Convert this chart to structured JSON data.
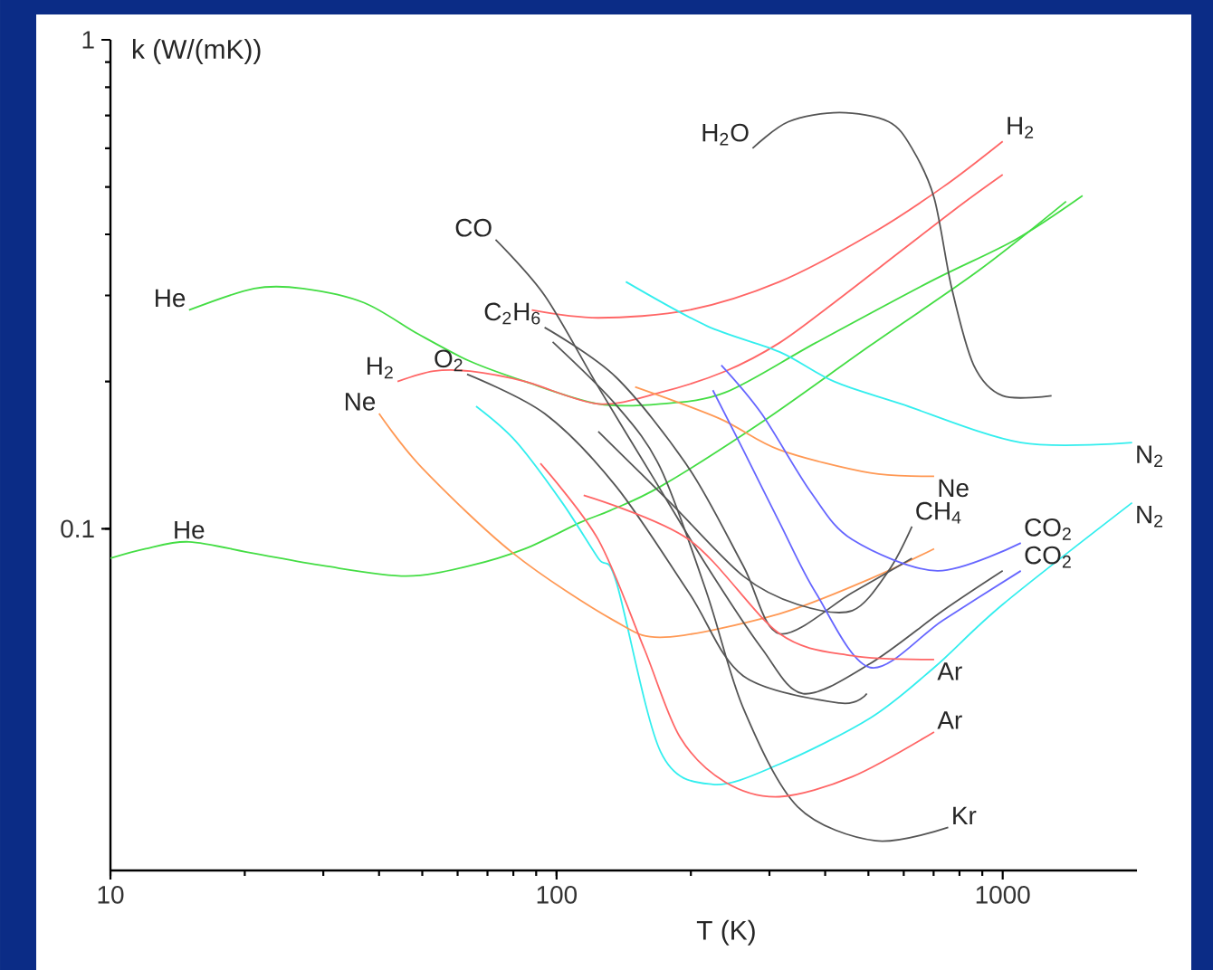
{
  "chart_data": {
    "type": "line",
    "xlabel": "T (K)",
    "ylabel": "k (W/(mK))",
    "log": "xy",
    "xlim": [
      10,
      2000
    ],
    "ylim": [
      0.02,
      1
    ],
    "xticks": [
      10,
      100,
      1000
    ],
    "yticks": [
      0.1,
      1
    ],
    "series": [
      {
        "color": "#44dd44",
        "x": [
          15,
          21,
          27,
          37,
          49,
          64,
          85,
          124,
          171,
          239,
          381,
          687,
          1067,
          1510
        ],
        "values": [
          0.28,
          0.31,
          0.31,
          0.29,
          0.25,
          0.22,
          0.2,
          0.18,
          0.18,
          0.19,
          0.24,
          0.32,
          0.39,
          0.48
        ]
      },
      {
        "color": "#44dd44",
        "x": [
          10,
          12,
          15,
          21,
          30,
          46,
          64,
          85,
          113,
          132,
          171,
          288,
          505,
          886,
          1387
        ],
        "values": [
          0.087,
          0.091,
          0.094,
          0.089,
          0.084,
          0.08,
          0.084,
          0.091,
          0.103,
          0.109,
          0.122,
          0.165,
          0.237,
          0.338,
          0.467
        ]
      },
      {
        "color": "#ff6666",
        "x": [
          88,
          124,
          198,
          316,
          505,
          735,
          1000
        ],
        "values": [
          0.28,
          0.27,
          0.28,
          0.32,
          0.4,
          0.5,
          0.62
        ]
      },
      {
        "color": "#ff6666",
        "x": [
          44,
          53,
          64,
          85,
          124,
          171,
          239,
          316,
          419,
          592,
          807,
          1000
        ],
        "values": [
          0.2,
          0.21,
          0.21,
          0.2,
          0.18,
          0.19,
          0.21,
          0.24,
          0.29,
          0.37,
          0.46,
          0.53
        ]
      },
      {
        "color": "#555555",
        "x": [
          275,
          331,
          431,
          555,
          626,
          702,
          769,
          861,
          1000,
          1287
        ],
        "values": [
          0.6,
          0.68,
          0.71,
          0.68,
          0.6,
          0.475,
          0.31,
          0.216,
          0.187,
          0.187
        ]
      },
      {
        "color": "#33eeee",
        "x": [
          143,
          217,
          316,
          419,
          592,
          1099,
          1950
        ],
        "values": [
          0.32,
          0.26,
          0.23,
          0.2,
          0.18,
          0.15,
          0.15
        ]
      },
      {
        "color": "#33eeee",
        "x": [
          66,
          81,
          103,
          124,
          136,
          171,
          224,
          316,
          505,
          702,
          1000,
          1950
        ],
        "values": [
          0.178,
          0.151,
          0.113,
          0.087,
          0.078,
          0.035,
          0.03,
          0.033,
          0.041,
          0.052,
          0.07,
          0.113
        ]
      },
      {
        "color": "#ff9955",
        "x": [
          150,
          232,
          316,
          505,
          702
        ],
        "values": [
          0.195,
          0.168,
          0.145,
          0.13,
          0.128
        ]
      },
      {
        "color": "#ff9955",
        "x": [
          40,
          50,
          80,
          134,
          175,
          316,
          505,
          702
        ],
        "values": [
          0.172,
          0.133,
          0.089,
          0.065,
          0.06,
          0.067,
          0.079,
          0.091
        ]
      },
      {
        "color": "#555555",
        "x": [
          73,
          94,
          124,
          164,
          217,
          288,
          357,
          505,
          735,
          1000
        ],
        "values": [
          0.39,
          0.3,
          0.195,
          0.128,
          0.084,
          0.057,
          0.046,
          0.053,
          0.068,
          0.082
        ]
      },
      {
        "color": "#555555",
        "x": [
          94,
          136,
          198,
          262,
          316,
          460,
          626
        ],
        "values": [
          0.258,
          0.204,
          0.133,
          0.084,
          0.061,
          0.074,
          0.087
        ]
      },
      {
        "color": "#555555",
        "x": [
          63,
          94,
          136,
          198,
          262,
          431,
          496
        ],
        "values": [
          0.207,
          0.172,
          0.122,
          0.074,
          0.05,
          0.044,
          0.046
        ]
      },
      {
        "color": "#555555",
        "x": [
          124,
          180,
          262,
          347,
          460,
          555,
          626
        ],
        "values": [
          0.158,
          0.113,
          0.08,
          0.07,
          0.068,
          0.082,
          0.101
        ]
      },
      {
        "color": "#555555",
        "x": [
          98,
          136,
          171,
          217,
          262,
          347,
          519,
          755
        ],
        "values": [
          0.241,
          0.179,
          0.133,
          0.074,
          0.043,
          0.027,
          0.023,
          0.0245
        ]
      },
      {
        "color": "#6666ff",
        "x": [
          234,
          288,
          371,
          460,
          714,
          1098
        ],
        "values": [
          0.216,
          0.172,
          0.119,
          0.095,
          0.082,
          0.0935
        ]
      },
      {
        "color": "#6666ff",
        "x": [
          224,
          262,
          316,
          381,
          505,
          735,
          1098
        ],
        "values": [
          0.192,
          0.145,
          0.103,
          0.074,
          0.052,
          0.065,
          0.082
        ]
      },
      {
        "color": "#ff6666",
        "x": [
          115,
          198,
          316,
          460,
          702
        ],
        "values": [
          0.117,
          0.095,
          0.061,
          0.055,
          0.054
        ]
      },
      {
        "color": "#ff6666",
        "x": [
          92,
          124,
          157,
          189,
          239,
          316,
          460,
          702
        ],
        "values": [
          0.136,
          0.095,
          0.057,
          0.0375,
          0.0303,
          0.0283,
          0.0311,
          0.0384
        ]
      }
    ],
    "annotations": [
      {
        "text": "He",
        "x": 15,
        "y": 0.28
      },
      {
        "text": "He",
        "x": 15,
        "y": 0.094
      },
      {
        "text": "H$_{2}$",
        "x": 1000,
        "y": 0.62
      },
      {
        "text": "H$_{2}$",
        "x": 44,
        "y": 0.2
      },
      {
        "text": "H$_{2}$O",
        "x": 275,
        "y": 0.6
      },
      {
        "text": "N$_{2}$",
        "x": 1950,
        "y": 0.15
      },
      {
        "text": "N$_{2}$",
        "x": 1950,
        "y": 0.113
      },
      {
        "text": "Ne",
        "x": 702,
        "y": 0.128
      },
      {
        "text": "Ne",
        "x": 40,
        "y": 0.172
      },
      {
        "text": "CO",
        "x": 73,
        "y": 0.39
      },
      {
        "text": "C$_{2}$H$_{6}$",
        "x": 94,
        "y": 0.258
      },
      {
        "text": "O$_{2}$",
        "x": 63,
        "y": 0.207
      },
      {
        "text": "CH$_{4}$",
        "x": 626,
        "y": 0.101
      },
      {
        "text": "Kr",
        "x": 755,
        "y": 0.0245
      },
      {
        "text": "CO$_{2}$",
        "x": 1098,
        "y": 0.0935
      },
      {
        "text": "CO$_{2}$",
        "x": 1098,
        "y": 0.082
      },
      {
        "text": "Ar",
        "x": 702,
        "y": 0.054
      },
      {
        "text": "Ar",
        "x": 702,
        "y": 0.0384
      }
    ]
  }
}
